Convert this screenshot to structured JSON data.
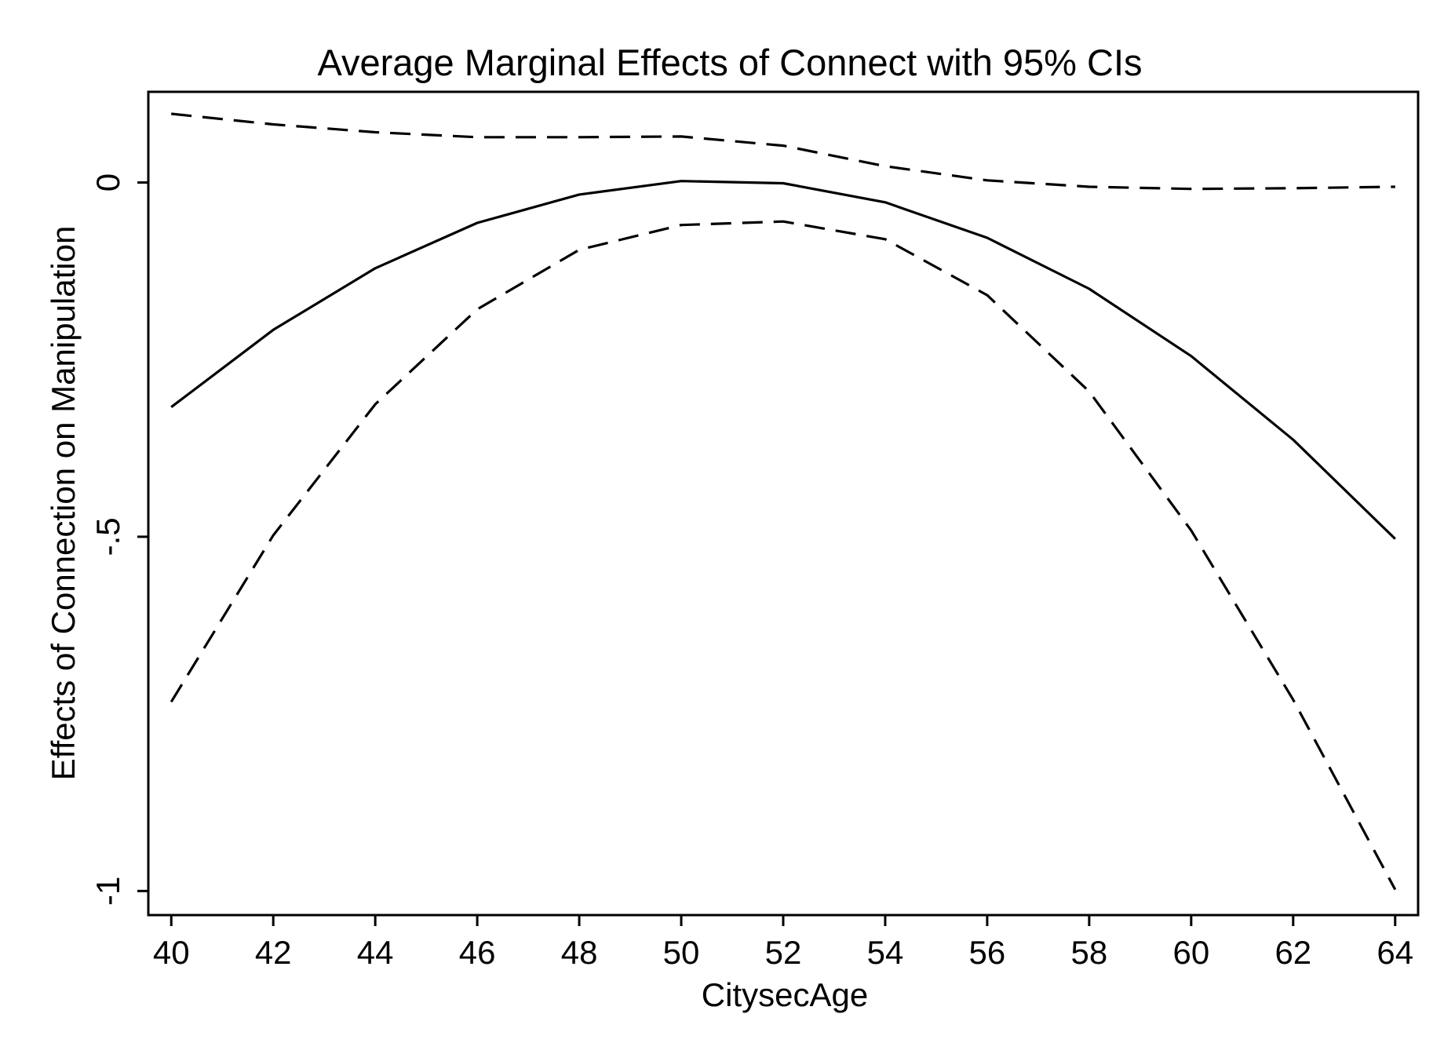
{
  "chart_data": {
    "type": "line",
    "title": "Average Marginal Effects of Connect with 95% CIs",
    "xlabel": "CitysecAge",
    "ylabel": "Effects of Connection on Manipulation",
    "x": [
      40,
      42,
      44,
      46,
      48,
      50,
      52,
      54,
      56,
      58,
      60,
      62,
      64
    ],
    "xticks": [
      "40",
      "42",
      "44",
      "46",
      "48",
      "50",
      "52",
      "54",
      "56",
      "58",
      "60",
      "62",
      "64"
    ],
    "yticks": [
      {
        "value": 0,
        "label": "0"
      },
      {
        "value": -0.5,
        "label": "-.5"
      },
      {
        "value": -1,
        "label": "-1"
      }
    ],
    "xlim": [
      39.55,
      64.45
    ],
    "ylim": [
      -1.034,
      0.128
    ],
    "grid": false,
    "legend": "none",
    "series": [
      {
        "style": "solid",
        "color": "#000000",
        "values": [
          -0.317,
          -0.208,
          -0.121,
          -0.057,
          -0.017,
          0.002,
          -0.001,
          -0.028,
          -0.078,
          -0.15,
          -0.245,
          -0.363,
          -0.503
        ]
      },
      {
        "style": "dashed",
        "color": "#000000",
        "values": [
          0.097,
          0.082,
          0.071,
          0.064,
          0.064,
          0.065,
          0.052,
          0.023,
          0.003,
          -0.006,
          -0.009,
          -0.008,
          -0.006
        ]
      },
      {
        "style": "dashed",
        "color": "#000000",
        "values": [
          -0.733,
          -0.498,
          -0.313,
          -0.179,
          -0.095,
          -0.06,
          -0.055,
          -0.08,
          -0.159,
          -0.295,
          -0.491,
          -0.73,
          -0.998
        ]
      }
    ]
  }
}
